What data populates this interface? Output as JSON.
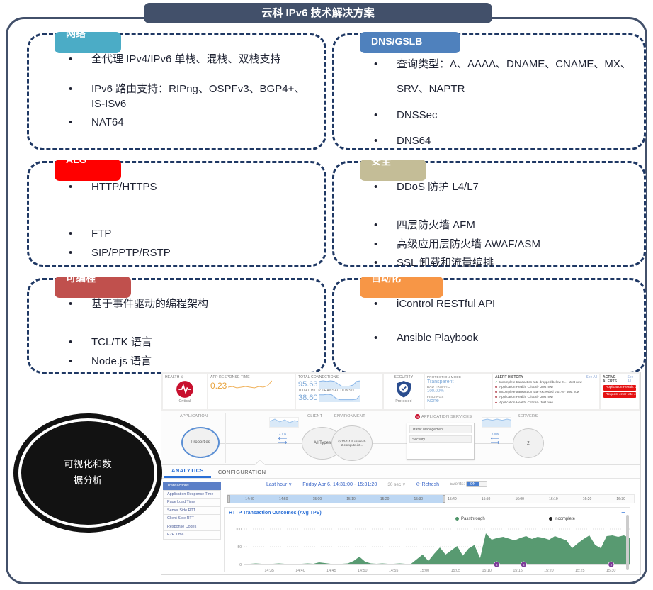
{
  "title": "云科 IPv6 技术解决方案",
  "boxes": [
    {
      "tag": "网络",
      "color": "#4BACC6",
      "items": [
        "全代理 IPv4/IPv6 单栈、混栈、双栈支持",
        "IPv6 路由支持：RIPng、OSPFv3、BGP4+、IS-ISv6",
        "NAT64"
      ]
    },
    {
      "tag": "DNS/GSLB",
      "color": "#4F81BD",
      "items": [
        "查询类型：A、AAAA、DNAME、CNAME、MX、SRV、NAPTR",
        "DNSSec",
        "DNS64"
      ]
    },
    {
      "tag": "ALG",
      "color": "#FF0000",
      "items": [
        "HTTP/HTTPS",
        "FTP",
        "SIP/PPTP/RSTP"
      ]
    },
    {
      "tag": "安全",
      "color": "#C4BD97",
      "items": [
        "DDoS 防护 L4/L7",
        "四层防火墙 AFM",
        "高级应用层防火墙 AWAF/ASM",
        "SSL 卸载和流量编排"
      ]
    },
    {
      "tag": "可编程",
      "color": "#C0504D",
      "items": [
        "基于事件驱动的编程架构",
        "TCL/TK 语言",
        "Node.js 语言"
      ]
    },
    {
      "tag": "自动化",
      "color": "#F79646",
      "items": [
        "iControl RESTful API",
        "Ansible Playbook"
      ]
    }
  ],
  "ellipse_label": "可视化和数据分析",
  "dashboard": {
    "health": {
      "label": "HEALTH",
      "status": "Critical"
    },
    "app_response": {
      "label": "APP RESPONSE TIME",
      "value": "0.23"
    },
    "connections": {
      "label": "TOTAL CONNECTIONS",
      "value": "95.63"
    },
    "transactions": {
      "label": "TOTAL HTTP TRANSACTIONS/s",
      "value": "38.60"
    },
    "security": {
      "label": "SECURITY",
      "status": "Protected"
    },
    "protection": {
      "mode_label": "PROTECTION MODE",
      "mode": "Transparent",
      "bad_label": "BAD TRAFFIC",
      "bad": "100.00%",
      "findings_label": "FINDINGS",
      "findings": "None"
    },
    "alert_history": {
      "title": "ALERT HISTORY",
      "see_all": "See All",
      "items": [
        {
          "icon": "check",
          "text": "Incomplete transaction rate dropped below 0... · Just now"
        },
        {
          "icon": "diamond",
          "text": "Application Health: Critical · Just now"
        },
        {
          "icon": "diamond",
          "text": "Incomplete transaction rate exceeded 0.01% · Just now"
        },
        {
          "icon": "diamond",
          "text": "Application Health: Critical · Just now"
        },
        {
          "icon": "diamond",
          "text": "Application Health: Critical · Just now"
        }
      ]
    },
    "active_alerts": {
      "title": "ACTIVE ALERTS",
      "see_all": "See All",
      "items": [
        "Application Health: Critical",
        "Request error rate exceeded 0.05%"
      ]
    },
    "map": {
      "application_label": "APPLICATION",
      "application_node": "Properties",
      "client_label": "CLIENT",
      "client_node": "All Types",
      "client_latency": "1 ms",
      "environment_label": "ENVIRONMENT",
      "environment_node": "ip-10-1-1-9.us-west-2.compute.int...",
      "services_label": "APPLICATION SERVICES",
      "services": [
        "Traffic Management",
        "Security"
      ],
      "servers_label": "SERVERS",
      "servers_node": "2",
      "server_latency": "2 ms"
    },
    "tabs": [
      "ANALYTICS",
      "CONFIGURATION"
    ],
    "sidebar": [
      "Transactions",
      "Application Response Time",
      "Page Load Time",
      "Server Side RTT",
      "Client Side RTT",
      "Response Codes",
      "E2E Time"
    ],
    "time_controls": {
      "range": "Last hour",
      "date": "Friday Apr 6, 14:31:00 - 15:31:20",
      "interval": "30 sec",
      "refresh": "Refresh",
      "events_label": "Events:",
      "events_state": "ON"
    },
    "timeline_ticks": [
      "14:40",
      "14:50",
      "15:00",
      "15:10",
      "15:20",
      "15:30",
      "15:40",
      "15:50",
      "16:00",
      "16:10",
      "16:20",
      "16:30"
    ],
    "sparks": {
      "app_response": [
        5,
        6,
        4,
        5,
        6,
        5,
        4,
        6,
        5,
        7,
        14
      ],
      "connections": [
        11,
        12,
        11,
        12,
        11,
        6,
        2,
        2,
        2,
        4,
        11,
        12
      ],
      "transactions": [
        12,
        12,
        13,
        12,
        5,
        2,
        2,
        2,
        2,
        3,
        12
      ],
      "client": [
        8,
        11,
        7,
        10,
        6,
        9,
        7
      ],
      "servers": [
        6,
        7,
        6,
        7,
        6,
        7,
        6
      ]
    }
  },
  "chart_data": {
    "type": "area",
    "title": "HTTP Transaction Outcomes (Avg TPS)",
    "legend": [
      {
        "name": "Passthrough",
        "color": "#4f9569"
      },
      {
        "name": "Incomplete",
        "color": "#222222"
      }
    ],
    "ylim": [
      0,
      100
    ],
    "y_ticks": [
      0,
      50,
      100
    ],
    "x_ticks": [
      "14:35",
      "14:40",
      "14:45",
      "14:50",
      "14:55",
      "15:00",
      "15:05",
      "15:10",
      "15:15",
      "15:20",
      "15:25",
      "15:30"
    ],
    "x_range": [
      "14:31",
      "15:33"
    ],
    "series": [
      {
        "name": "Passthrough",
        "color": "#4f9569",
        "values": [
          2,
          2,
          3,
          2,
          2,
          2,
          3,
          2,
          2,
          2,
          2,
          3,
          2,
          6,
          4,
          2,
          2,
          2,
          3,
          10,
          22,
          8,
          3,
          2,
          3,
          2,
          2,
          3,
          2,
          2,
          15,
          28,
          10,
          30,
          48,
          28,
          40,
          52,
          25,
          45,
          55,
          18,
          88,
          70,
          75,
          78,
          73,
          68,
          75,
          80,
          72,
          78,
          75,
          70,
          80,
          74,
          68,
          46,
          60,
          72,
          82,
          55,
          46,
          80,
          82,
          78,
          82,
          75
        ]
      }
    ],
    "event_markers": [
      {
        "pos": 0.655,
        "label": "2"
      },
      {
        "pos": 0.725,
        "label": "2"
      },
      {
        "pos": 0.952,
        "label": "2"
      }
    ],
    "event_color": "#7d3c98",
    "collapse_label": "−"
  }
}
